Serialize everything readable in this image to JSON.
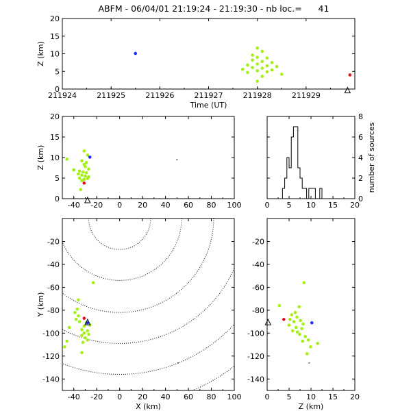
{
  "title": "ABFM - 06/04/01 21:19:24 - 21:19:30 - nb loc.=      41",
  "colors": {
    "early": "#1a2fff",
    "mid": "#a4ef14",
    "late": "#e0141c",
    "axis": "#000000",
    "contour": "#000000"
  },
  "chart_data": [
    {
      "type": "scatter",
      "name": "z-vs-time",
      "xlabel": "Time (UT)",
      "ylabel": "Z (km)",
      "xlim": [
        211924,
        211930
      ],
      "ylim": [
        0,
        20
      ],
      "xticks": [
        211924,
        211925,
        211926,
        211927,
        211928,
        211929
      ],
      "yticks": [
        0,
        5,
        10,
        15,
        20
      ],
      "points": [
        {
          "x": 211925.5,
          "y": 10.1,
          "c": "early"
        },
        {
          "x": 211928.0,
          "y": 11.6,
          "c": "mid"
        },
        {
          "x": 211928.1,
          "y": 10.7,
          "c": "mid"
        },
        {
          "x": 211927.9,
          "y": 9.6,
          "c": "mid"
        },
        {
          "x": 211928.0,
          "y": 9.0,
          "c": "mid"
        },
        {
          "x": 211928.2,
          "y": 8.8,
          "c": "mid"
        },
        {
          "x": 211927.9,
          "y": 8.2,
          "c": "mid"
        },
        {
          "x": 211928.1,
          "y": 7.8,
          "c": "mid"
        },
        {
          "x": 211928.3,
          "y": 7.5,
          "c": "mid"
        },
        {
          "x": 211928.0,
          "y": 7.1,
          "c": "mid"
        },
        {
          "x": 211927.8,
          "y": 6.8,
          "c": "mid"
        },
        {
          "x": 211928.2,
          "y": 6.6,
          "c": "mid"
        },
        {
          "x": 211928.4,
          "y": 6.4,
          "c": "mid"
        },
        {
          "x": 211927.9,
          "y": 6.1,
          "c": "mid"
        },
        {
          "x": 211928.1,
          "y": 5.9,
          "c": "mid"
        },
        {
          "x": 211927.7,
          "y": 5.6,
          "c": "mid"
        },
        {
          "x": 211928.3,
          "y": 5.4,
          "c": "mid"
        },
        {
          "x": 211928.0,
          "y": 5.2,
          "c": "mid"
        },
        {
          "x": 211928.2,
          "y": 4.9,
          "c": "mid"
        },
        {
          "x": 211927.8,
          "y": 4.7,
          "c": "mid"
        },
        {
          "x": 211928.5,
          "y": 4.2,
          "c": "mid"
        },
        {
          "x": 211928.1,
          "y": 3.6,
          "c": "mid"
        },
        {
          "x": 211928.0,
          "y": 2.2,
          "c": "mid"
        },
        {
          "x": 211929.9,
          "y": 4.0,
          "c": "late"
        }
      ],
      "markers": [
        {
          "x": 211929.85,
          "y": -0.5,
          "shape": "triangle"
        }
      ]
    },
    {
      "type": "scatter",
      "name": "z-vs-x",
      "ylabel": "Z (km)",
      "xlim": [
        -50,
        100
      ],
      "ylim": [
        0,
        20
      ],
      "xticks": [
        -40,
        -20,
        0,
        20,
        40,
        60,
        80,
        100
      ],
      "yticks": [
        0,
        5,
        10,
        15,
        20
      ],
      "points": [
        {
          "x": -31,
          "y": 11.6,
          "c": "mid"
        },
        {
          "x": -46,
          "y": 9.6,
          "c": "mid"
        },
        {
          "x": -28,
          "y": 10.6,
          "c": "mid"
        },
        {
          "x": -33,
          "y": 9.2,
          "c": "mid"
        },
        {
          "x": -29,
          "y": 8.8,
          "c": "mid"
        },
        {
          "x": -31,
          "y": 8.3,
          "c": "mid"
        },
        {
          "x": -30,
          "y": 7.8,
          "c": "mid"
        },
        {
          "x": -27,
          "y": 7.2,
          "c": "mid"
        },
        {
          "x": -40,
          "y": 7.0,
          "c": "mid"
        },
        {
          "x": -35,
          "y": 6.7,
          "c": "mid"
        },
        {
          "x": -32,
          "y": 6.5,
          "c": "mid"
        },
        {
          "x": -29,
          "y": 6.3,
          "c": "mid"
        },
        {
          "x": -36,
          "y": 6.0,
          "c": "mid"
        },
        {
          "x": -33,
          "y": 5.7,
          "c": "mid"
        },
        {
          "x": -30,
          "y": 5.5,
          "c": "mid"
        },
        {
          "x": -27,
          "y": 5.3,
          "c": "mid"
        },
        {
          "x": -35,
          "y": 5.0,
          "c": "mid"
        },
        {
          "x": -31,
          "y": 4.7,
          "c": "mid"
        },
        {
          "x": -33,
          "y": 4.4,
          "c": "mid"
        },
        {
          "x": -28,
          "y": 4.9,
          "c": "mid"
        },
        {
          "x": -34,
          "y": 2.2,
          "c": "mid"
        },
        {
          "x": -26,
          "y": 10.1,
          "c": "early"
        },
        {
          "x": -31,
          "y": 3.8,
          "c": "late"
        },
        {
          "x": 50,
          "y": 9.5,
          "c": "axis"
        }
      ],
      "markers": [
        {
          "x": -28,
          "y": -0.5,
          "shape": "triangle"
        }
      ]
    },
    {
      "type": "bar",
      "name": "histogram",
      "ylabel": "number of sources",
      "xlim": [
        0,
        20
      ],
      "ylim": [
        0,
        8
      ],
      "xticks": [
        0,
        5,
        10,
        15,
        20
      ],
      "yticks": [
        0,
        2,
        4,
        6,
        8
      ],
      "bin_width": 0.5,
      "bins": [
        0,
        0.5,
        1,
        1.5,
        2,
        2.5,
        3,
        3.5,
        4,
        4.5,
        5,
        5.5,
        6,
        6.5,
        7,
        7.5,
        8,
        8.5,
        9,
        9.5,
        10,
        10.5,
        11,
        11.5,
        12,
        12.5,
        13,
        13.5,
        14,
        14.5,
        15,
        15.5,
        16,
        16.5,
        17,
        17.5,
        18,
        18.5,
        19,
        19.5
      ],
      "values": [
        0,
        0,
        0,
        0,
        0,
        0,
        0,
        1,
        2,
        4,
        3,
        6,
        7,
        7,
        3,
        2,
        1,
        1,
        0,
        1,
        1,
        1,
        0,
        0,
        1,
        0,
        0,
        0,
        0,
        0,
        0,
        0,
        0,
        0,
        0,
        0,
        0,
        0,
        0,
        0
      ]
    },
    {
      "type": "scatter",
      "name": "y-vs-x",
      "xlabel": "X (km)",
      "ylabel": "Y (km)",
      "xlim": [
        -50,
        100
      ],
      "ylim": [
        -150,
        0
      ],
      "xticks": [
        -40,
        -20,
        0,
        20,
        40,
        60,
        80,
        100
      ],
      "yticks": [
        -140,
        -120,
        -100,
        -80,
        -60,
        -40,
        -20
      ],
      "contours": {
        "center": [
          0,
          0
        ],
        "radii": [
          27,
          54,
          82,
          109,
          136,
          163
        ]
      },
      "points": [
        {
          "x": -23,
          "y": -56,
          "c": "mid"
        },
        {
          "x": -36,
          "y": -71,
          "c": "mid"
        },
        {
          "x": -37,
          "y": -79,
          "c": "mid"
        },
        {
          "x": -39,
          "y": -82,
          "c": "mid"
        },
        {
          "x": -36,
          "y": -85,
          "c": "mid"
        },
        {
          "x": -38,
          "y": -88,
          "c": "mid"
        },
        {
          "x": -35,
          "y": -90,
          "c": "mid"
        },
        {
          "x": -29,
          "y": -91,
          "c": "mid"
        },
        {
          "x": -26,
          "y": -93,
          "c": "mid"
        },
        {
          "x": -31,
          "y": -94,
          "c": "mid"
        },
        {
          "x": -33,
          "y": -97,
          "c": "mid"
        },
        {
          "x": -28,
          "y": -98,
          "c": "mid"
        },
        {
          "x": -31,
          "y": -100,
          "c": "mid"
        },
        {
          "x": -27,
          "y": -101,
          "c": "mid"
        },
        {
          "x": -33,
          "y": -102,
          "c": "mid"
        },
        {
          "x": -30,
          "y": -104,
          "c": "mid"
        },
        {
          "x": -28,
          "y": -106,
          "c": "mid"
        },
        {
          "x": -32,
          "y": -108,
          "c": "mid"
        },
        {
          "x": -44,
          "y": -95,
          "c": "mid"
        },
        {
          "x": -46,
          "y": -107,
          "c": "mid"
        },
        {
          "x": -48,
          "y": -112,
          "c": "mid"
        },
        {
          "x": -33,
          "y": -117,
          "c": "mid"
        },
        {
          "x": -28,
          "y": -91,
          "c": "early"
        },
        {
          "x": -31,
          "y": -87,
          "c": "late"
        },
        {
          "x": 51,
          "y": -126,
          "c": "axis"
        }
      ],
      "markers": [
        {
          "x": -28,
          "y": -91,
          "shape": "triangle"
        }
      ]
    },
    {
      "type": "scatter",
      "name": "y-vs-z",
      "xlabel": "Z (km)",
      "xlim": [
        0,
        20
      ],
      "ylim": [
        -150,
        0
      ],
      "xticks": [
        0,
        5,
        10,
        15,
        20
      ],
      "yticks": [
        -140,
        -120,
        -100,
        -80,
        -60,
        -40,
        -20
      ],
      "points": [
        {
          "x": 8.4,
          "y": -56,
          "c": "mid"
        },
        {
          "x": 2.8,
          "y": -76,
          "c": "mid"
        },
        {
          "x": 7.3,
          "y": -77,
          "c": "mid"
        },
        {
          "x": 6.4,
          "y": -82,
          "c": "mid"
        },
        {
          "x": 5.6,
          "y": -84,
          "c": "mid"
        },
        {
          "x": 6.8,
          "y": -86,
          "c": "mid"
        },
        {
          "x": 5.2,
          "y": -88,
          "c": "mid"
        },
        {
          "x": 7.6,
          "y": -89,
          "c": "mid"
        },
        {
          "x": 6.1,
          "y": -90,
          "c": "mid"
        },
        {
          "x": 8.2,
          "y": -92,
          "c": "mid"
        },
        {
          "x": 5.0,
          "y": -93,
          "c": "mid"
        },
        {
          "x": 6.6,
          "y": -95,
          "c": "mid"
        },
        {
          "x": 7.9,
          "y": -96,
          "c": "mid"
        },
        {
          "x": 5.8,
          "y": -98,
          "c": "mid"
        },
        {
          "x": 6.9,
          "y": -99,
          "c": "mid"
        },
        {
          "x": 7.4,
          "y": -101,
          "c": "mid"
        },
        {
          "x": 8.7,
          "y": -103,
          "c": "mid"
        },
        {
          "x": 9.4,
          "y": -106,
          "c": "mid"
        },
        {
          "x": 8.1,
          "y": -107,
          "c": "mid"
        },
        {
          "x": 11.5,
          "y": -109,
          "c": "mid"
        },
        {
          "x": 9.9,
          "y": -112,
          "c": "mid"
        },
        {
          "x": 9.1,
          "y": -118,
          "c": "mid"
        },
        {
          "x": 10.2,
          "y": -91,
          "c": "early"
        },
        {
          "x": 3.8,
          "y": -88,
          "c": "late"
        },
        {
          "x": 9.6,
          "y": -126,
          "c": "axis"
        }
      ],
      "markers": [
        {
          "x": 0.2,
          "y": -91,
          "shape": "triangle"
        }
      ]
    }
  ]
}
